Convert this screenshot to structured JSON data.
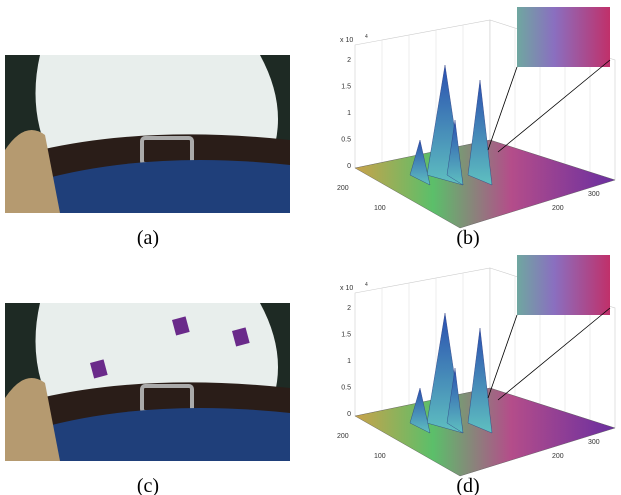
{
  "panels": [
    {
      "caption": "(a)"
    },
    {
      "caption": "(b)",
      "plot": {
        "multiplier": "x 10",
        "multiplier_power": "4",
        "z_ticks": [
          2,
          1.5,
          1,
          0.5,
          0
        ],
        "left_ticks": [
          200,
          100
        ],
        "right_ticks": [
          200,
          300
        ]
      }
    },
    {
      "caption": "(c)"
    },
    {
      "caption": "(d)",
      "plot": {
        "multiplier": "x 10",
        "multiplier_power": "4",
        "z_ticks": [
          2,
          1.5,
          1,
          0.5,
          0
        ],
        "left_ticks": [
          200,
          100
        ],
        "right_ticks": [
          200,
          300
        ]
      }
    }
  ]
}
